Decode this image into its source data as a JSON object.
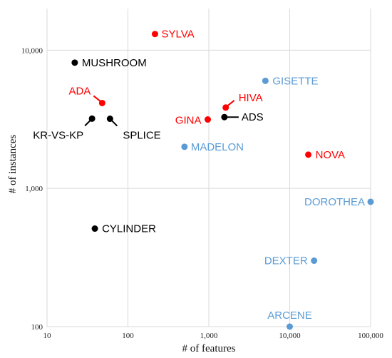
{
  "chart_data": {
    "type": "scatter",
    "xlabel": "# of features",
    "ylabel": "# of instances",
    "x_scale": "log",
    "y_scale": "log",
    "xlim": [
      10,
      100000
    ],
    "ylim": [
      100,
      20000
    ],
    "x_ticks": [
      {
        "value": 10,
        "label": "10"
      },
      {
        "value": 100,
        "label": "100"
      },
      {
        "value": 1000,
        "label": "1,000"
      },
      {
        "value": 10000,
        "label": "10,000"
      },
      {
        "value": 100000,
        "label": "100,000"
      }
    ],
    "y_ticks": [
      {
        "value": 100,
        "label": "100"
      },
      {
        "value": 1000,
        "label": "1,000"
      },
      {
        "value": 10000,
        "label": "10,000"
      }
    ],
    "grid": true,
    "colors": {
      "black": "#000000",
      "red": "#ff0000",
      "blue": "#5b9bd5"
    },
    "points": [
      {
        "name": "SYLVA",
        "x": 216,
        "y": 13086,
        "color": "red"
      },
      {
        "name": "MUSHROOM",
        "x": 22,
        "y": 8124,
        "color": "black"
      },
      {
        "name": "ADA",
        "x": 48,
        "y": 4147,
        "color": "red"
      },
      {
        "name": "KR-VS-KP",
        "x": 36,
        "y": 3196,
        "color": "black"
      },
      {
        "name": "SPLICE",
        "x": 60,
        "y": 3190,
        "color": "black"
      },
      {
        "name": "GISETTE",
        "x": 5000,
        "y": 6000,
        "color": "blue"
      },
      {
        "name": "HIVA",
        "x": 1617,
        "y": 3845,
        "color": "red"
      },
      {
        "name": "GINA",
        "x": 970,
        "y": 3153,
        "color": "red"
      },
      {
        "name": "ADS",
        "x": 1558,
        "y": 3279,
        "color": "black"
      },
      {
        "name": "MADELON",
        "x": 500,
        "y": 2000,
        "color": "blue"
      },
      {
        "name": "NOVA",
        "x": 16969,
        "y": 1754,
        "color": "red"
      },
      {
        "name": "DOROTHEA",
        "x": 100000,
        "y": 800,
        "color": "blue"
      },
      {
        "name": "CYLINDER",
        "x": 39,
        "y": 512,
        "color": "black"
      },
      {
        "name": "DEXTER",
        "x": 20000,
        "y": 300,
        "color": "blue"
      },
      {
        "name": "ARCENE",
        "x": 10000,
        "y": 100,
        "color": "blue"
      }
    ]
  }
}
